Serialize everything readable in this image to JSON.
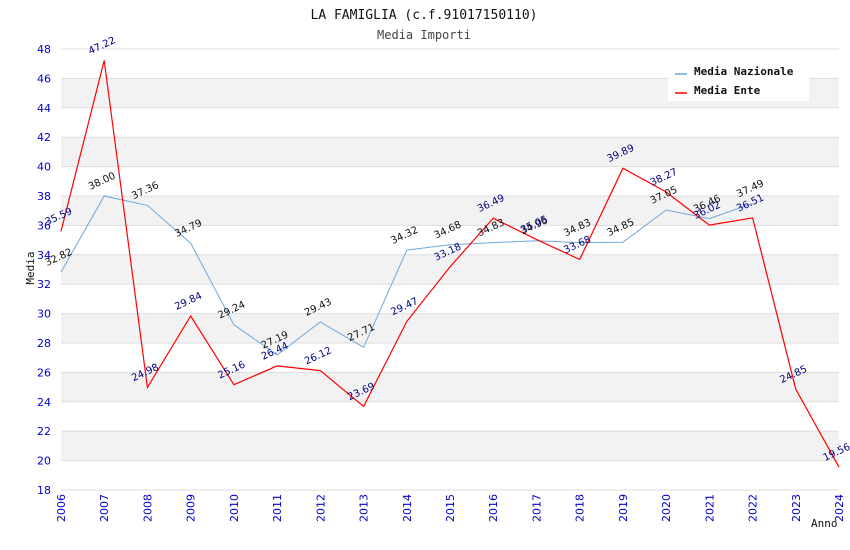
{
  "chart_data": {
    "type": "line",
    "title": "LA FAMIGLIA (c.f.91017150110)",
    "subtitle": "Media Importi",
    "xlabel": "Anno",
    "ylabel": "Media",
    "ylim": [
      18,
      48
    ],
    "ytick_step": 2,
    "grid": true,
    "legend_position": "top-right",
    "categories": [
      "2006",
      "2007",
      "2008",
      "2009",
      "2010",
      "2011",
      "2012",
      "2013",
      "2014",
      "2015",
      "2016",
      "2017",
      "2018",
      "2019",
      "2020",
      "2021",
      "2022",
      "2023",
      "2024"
    ],
    "series": [
      {
        "name": "Media Nazionale",
        "color": "#6fa8dc",
        "label_color": "#111111",
        "values": [
          32.82,
          38.0,
          37.36,
          34.79,
          29.24,
          27.19,
          29.43,
          27.71,
          34.32,
          34.68,
          34.83,
          34.96,
          34.83,
          34.85,
          37.05,
          36.46,
          37.49,
          null,
          null
        ],
        "labels": [
          "32.82",
          "38.00",
          "37.36",
          "34.79",
          "29.24",
          "27.19",
          "29.43",
          "27.71",
          "34.32",
          "34.68",
          "34.83",
          "34.96",
          "34.83",
          "34.85",
          "37.05",
          "36.46",
          "37.49",
          null,
          null
        ]
      },
      {
        "name": "Media Ente",
        "color": "#ff0000",
        "label_color": "#000080",
        "values": [
          35.59,
          47.22,
          24.98,
          29.84,
          25.16,
          26.44,
          26.12,
          23.69,
          29.47,
          33.18,
          36.49,
          35.05,
          33.68,
          39.89,
          38.27,
          36.02,
          36.51,
          24.85,
          19.56
        ],
        "labels": [
          "35.59",
          "47.22",
          "24.98",
          "29.84",
          "25.16",
          "26.44",
          "26.12",
          "23.69",
          "29.47",
          "33.18",
          "36.49",
          "35.05",
          "33.68",
          "39.89",
          "38.27",
          "36.02",
          "36.51",
          "24.85",
          "19.56"
        ]
      }
    ],
    "colors": {
      "tick": "#0000cc",
      "band": "#f2f2f2",
      "gridline": "#dddddd"
    }
  }
}
